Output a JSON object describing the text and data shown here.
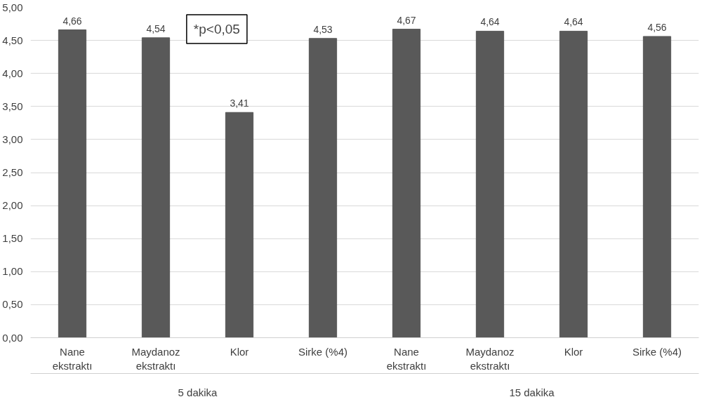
{
  "chart_data": {
    "type": "bar",
    "categories": [
      "Nane\nekstraktı",
      "Maydanoz\nekstraktı",
      "Klor",
      "Sirke (%4)",
      "Nane\nekstraktı",
      "Maydanoz\nekstraktı",
      "Klor",
      "Sirke (%4)"
    ],
    "values": [
      4.66,
      4.54,
      3.41,
      4.53,
      4.67,
      4.64,
      4.64,
      4.56
    ],
    "value_labels": [
      "4,66",
      "4,54",
      "3,41",
      "4,53",
      "4,67",
      "4,64",
      "4,64",
      "4,56"
    ],
    "color": "#595959",
    "ylim": [
      0,
      5
    ],
    "yticks": [
      {
        "value": 0,
        "label": "0,00"
      },
      {
        "value": 0.5,
        "label": "0,50"
      },
      {
        "value": 1,
        "label": "1,00"
      },
      {
        "value": 1.5,
        "label": "1,50"
      },
      {
        "value": 2,
        "label": "2,00"
      },
      {
        "value": 2.5,
        "label": "2,50"
      },
      {
        "value": 3,
        "label": "3,00"
      },
      {
        "value": 3.5,
        "label": "3,50"
      },
      {
        "value": 4,
        "label": "4,00"
      },
      {
        "value": 4.5,
        "label": "4,50"
      },
      {
        "value": 5,
        "label": "5,00"
      }
    ],
    "grid": "y",
    "annotations": [
      "*p<0,05",
      "5 dakika",
      "15 dakika"
    ]
  }
}
